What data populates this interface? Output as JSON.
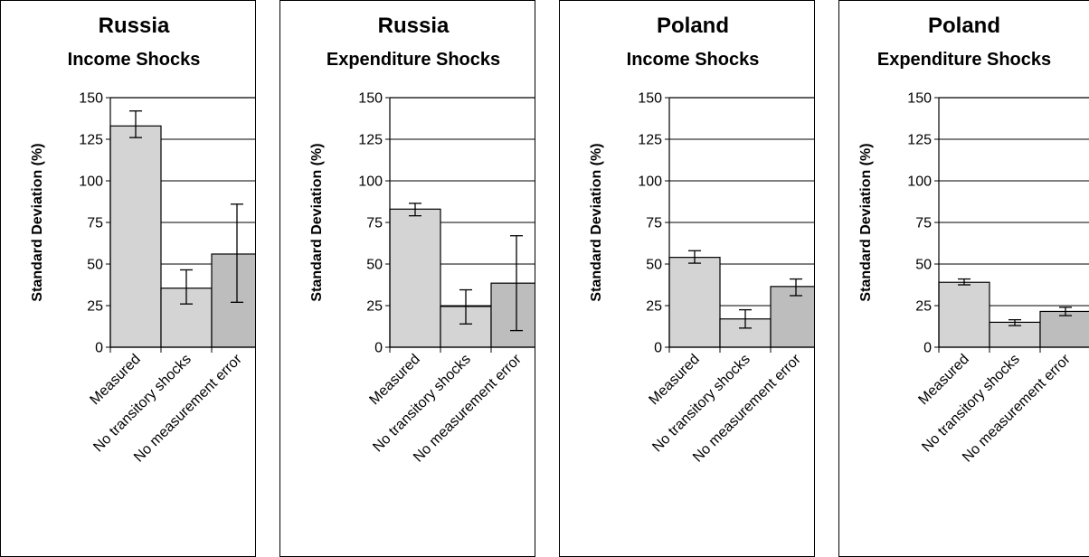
{
  "chart_data": [
    {
      "type": "bar",
      "title": "Russia",
      "subtitle": "Income Shocks",
      "ylabel": "Standard Deviation (%)",
      "ylim": [
        0,
        150
      ],
      "yticks": [
        0,
        25,
        50,
        75,
        100,
        125,
        150
      ],
      "categories": [
        "Measured",
        "No transitory shocks",
        "No measurement error"
      ],
      "values": [
        133,
        35.5,
        56
      ],
      "error_low": [
        126,
        26,
        27
      ],
      "error_high": [
        142,
        46.5,
        86
      ],
      "bar_colors": [
        "#d4d4d4",
        "#d4d4d4",
        "#bdbdbd"
      ],
      "grid": true
    },
    {
      "type": "bar",
      "title": "Russia",
      "subtitle": "Expenditure Shocks",
      "ylabel": "Standard Deviation (%)",
      "ylim": [
        0,
        150
      ],
      "yticks": [
        0,
        25,
        50,
        75,
        100,
        125,
        150
      ],
      "categories": [
        "Measured",
        "No transitory shocks",
        "No measurement error"
      ],
      "values": [
        83,
        24.5,
        38.5
      ],
      "error_low": [
        79,
        14,
        10
      ],
      "error_high": [
        86.5,
        34.5,
        67
      ],
      "bar_colors": [
        "#d4d4d4",
        "#d4d4d4",
        "#bdbdbd"
      ],
      "grid": true
    },
    {
      "type": "bar",
      "title": "Poland",
      "subtitle": "Income Shocks",
      "ylabel": "Standard Deviation (%)",
      "ylim": [
        0,
        150
      ],
      "yticks": [
        0,
        25,
        50,
        75,
        100,
        125,
        150
      ],
      "categories": [
        "Measured",
        "No transitory shocks",
        "No measurement error"
      ],
      "values": [
        54,
        17,
        36.5
      ],
      "error_low": [
        50.5,
        11.5,
        31
      ],
      "error_high": [
        58,
        22.5,
        41
      ],
      "bar_colors": [
        "#d4d4d4",
        "#d4d4d4",
        "#bdbdbd"
      ],
      "grid": true
    },
    {
      "type": "bar",
      "title": "Poland",
      "subtitle": "Expenditure Shocks",
      "ylabel": "Standard Deviation (%)",
      "ylim": [
        0,
        150
      ],
      "yticks": [
        0,
        25,
        50,
        75,
        100,
        125,
        150
      ],
      "categories": [
        "Measured",
        "No transitory shocks",
        "No measurement error"
      ],
      "values": [
        39,
        15,
        21.5
      ],
      "error_low": [
        37.5,
        13,
        19
      ],
      "error_high": [
        41,
        16.5,
        24
      ],
      "bar_colors": [
        "#d4d4d4",
        "#d4d4d4",
        "#bdbdbd"
      ],
      "grid": true
    }
  ]
}
